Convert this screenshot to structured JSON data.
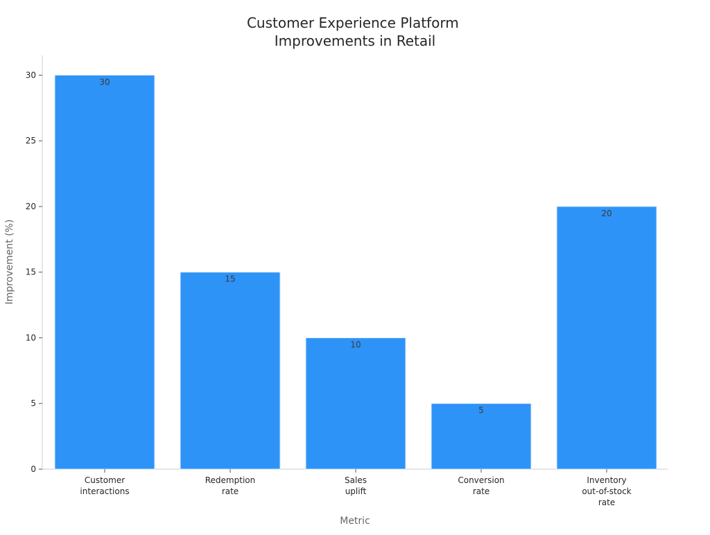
{
  "chart_data": {
    "type": "bar",
    "title": [
      "Customer Experience Platform",
      "Improvements in Retail"
    ],
    "xlabel": "Metric",
    "ylabel": "Improvement (%)",
    "categories": [
      [
        "Customer",
        "interactions"
      ],
      [
        "Redemption",
        "rate"
      ],
      [
        "Sales",
        "uplift"
      ],
      [
        "Conversion",
        "rate"
      ],
      [
        "Inventory",
        "out-of-stock",
        "rate"
      ]
    ],
    "values": [
      30,
      15,
      10,
      5,
      20
    ],
    "ylim": [
      0,
      31.5
    ],
    "yticks": [
      0,
      5,
      10,
      15,
      20,
      25,
      30
    ],
    "grid": false,
    "bar_color": "#2e93f7",
    "bar_edge_color": "#d9ecff",
    "data_labels": true
  }
}
